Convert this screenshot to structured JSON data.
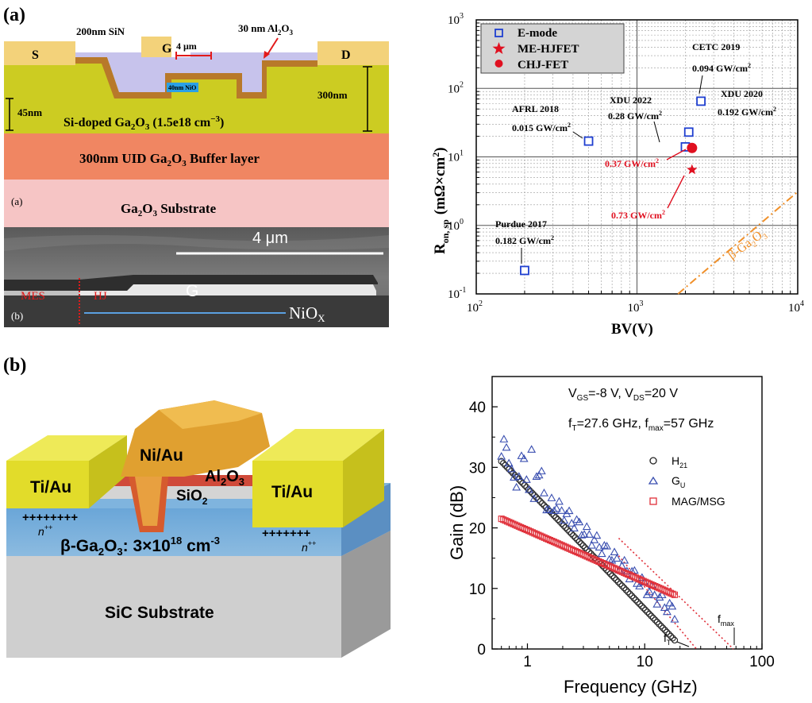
{
  "panel_a": {
    "label": "(a)",
    "cross_section": {
      "sin_label": "200nm SiN",
      "al2o3_label": "30 nm Al",
      "al2o3_sub": "2",
      "al2o3_o": "O",
      "al2o3_sub2": "3",
      "source": "S",
      "gate": "G",
      "gate_width": "4 μm",
      "drain": "D",
      "nio_label": "40nm NiO",
      "thick_300": "300nm",
      "thick_45": "45nm",
      "channel_label": "Si-doped Ga",
      "channel_sub": "2",
      "channel_o": "O",
      "channel_sub3": "3",
      "channel_doping": " (1.5e18 cm",
      "channel_exp": "−3",
      "channel_close": ")",
      "buffer_label": "300nm UID Ga",
      "buffer_sub": "2",
      "buffer_o": "O",
      "buffer_sub3": "3",
      "buffer_tail": " Buffer layer",
      "sub_a": "(a)",
      "substrate_label": "Ga",
      "substrate_sub": "2",
      "substrate_o": "O",
      "substrate_sub3": "3",
      "substrate_tail": " Substrate"
    },
    "sem": {
      "scale": "4 μm",
      "gate": "G",
      "mes": "MES",
      "hj": "HJ",
      "sub_b": "(b)",
      "nio": "NiO",
      "nio_sub": "X"
    },
    "chart": {
      "legend": [
        "E-mode",
        "ME-HJFET",
        "CHJ-FET"
      ],
      "ylabel_main": "R",
      "ylabel_sub": "on, sp",
      "ylabel_units": "(mΩ×cm",
      "ylabel_exp": "2",
      "ylabel_close": ")",
      "xlabel": "BV(V)",
      "x_ticks": [
        "10",
        "10",
        "10"
      ],
      "x_tick_exps": [
        "2",
        "3",
        "4"
      ],
      "y_ticks": [
        "10",
        "10",
        "10",
        "10",
        "10"
      ],
      "y_tick_exps": [
        "-1",
        "0",
        "1",
        "2",
        "3"
      ],
      "limit_label": "β-Ga",
      "limit_sub": "2",
      "limit_o": "O",
      "limit_sub3": "3",
      "annotations": [
        {
          "name": "CETC 2019",
          "fom": "0.094 GW/cm",
          "exp": "2"
        },
        {
          "name": "XDU 2020",
          "fom": "0.192 GW/cm",
          "exp": "2"
        },
        {
          "name": "XDU 2022",
          "fom": "0.28 GW/cm",
          "exp": "2"
        },
        {
          "name": "AFRL 2018",
          "fom": "0.015 GW/cm",
          "exp": "2"
        },
        {
          "name": "Purdue 2017",
          "fom": "0.182 GW/cm",
          "exp": "2"
        },
        {
          "name": "",
          "fom": "0.37 GW/cm",
          "exp": "2"
        },
        {
          "name": "",
          "fom": "0.73 GW/cm",
          "exp": "2"
        }
      ]
    }
  },
  "panel_b": {
    "label": "(b)",
    "device": {
      "ti_au_left": "Ti/Au",
      "ti_au_right": "Ti/Au",
      "ni_au": "Ni/Au",
      "al2o3": "Al",
      "al2o3_sub": "2",
      "al2o3_o": "O",
      "al2o3_sub3": "3",
      "sio2": "SiO",
      "sio2_sub": "2",
      "plus_left": "++++++++",
      "plus_right": "+++++++",
      "npp_left": "n",
      "npp_right": "n",
      "npp_sup": "++",
      "channel": "β-Ga",
      "channel_sub": "2",
      "channel_o": "O",
      "channel_sub3": "3",
      "channel_doping": ": 3×10",
      "channel_exp": "18",
      "channel_units": " cm",
      "channel_units_exp": "-3",
      "substrate": "SiC Substrate"
    },
    "chart": {
      "cond1": "V",
      "cond1_sub": "GS",
      "cond1_val": "=-8 V, V",
      "cond1_sub2": "DS",
      "cond1_val2": "=20 V",
      "cond2": "f",
      "cond2_sub": "T",
      "cond2_val": "=27.6 GHz, f",
      "cond2_sub2": "max",
      "cond2_val2": "=57 GHz",
      "legend": [
        {
          "label": "H",
          "sub": "21",
          "color": "#222222"
        },
        {
          "label": "G",
          "sub": "U",
          "color": "#3a4fb0"
        },
        {
          "label": "MAG/MSG",
          "sub": "",
          "color": "#e0303a"
        }
      ],
      "ylabel": "Gain (dB)",
      "xlabel": "Frequency (GHz)",
      "y_ticks": [
        "0",
        "10",
        "20",
        "30",
        "40"
      ],
      "x_ticks": [
        "1",
        "10",
        "100"
      ],
      "ft_label": "f",
      "ft_sub": "T",
      "fmax_label": "f",
      "fmax_sub": "max"
    }
  },
  "chart_data": [
    {
      "type": "scatter",
      "xlabel": "BV(V)",
      "ylabel": "Ron, sp (mΩ×cm2)",
      "x_scale": "log",
      "y_scale": "log",
      "xlim": [
        100,
        10000
      ],
      "ylim": [
        0.1,
        1000
      ],
      "legend_position": "top-left",
      "series": [
        {
          "name": "E-mode",
          "marker": "open-square",
          "color": "#1f3fd0",
          "points": [
            [
              200,
              0.22
            ],
            [
              500,
              17
            ],
            [
              2000,
              14
            ],
            [
              2100,
              23
            ],
            [
              2500,
              65
            ]
          ]
        },
        {
          "name": "ME-HJFET",
          "marker": "star",
          "color": "#e01020",
          "points": [
            [
              2200,
              6.5
            ]
          ]
        },
        {
          "name": "CHJ-FET",
          "marker": "circle",
          "color": "#e01020",
          "points": [
            [
              2200,
              13.5
            ]
          ]
        }
      ],
      "reference_line": {
        "label": "β-Ga2O3",
        "color": "#f0902a",
        "points": [
          [
            1800,
            0.1
          ],
          [
            10000,
            3.1
          ]
        ]
      }
    },
    {
      "type": "scatter",
      "xlabel": "Frequency (GHz)",
      "ylabel": "Gain (dB)",
      "x_scale": "log",
      "xlim": [
        0.5,
        100
      ],
      "ylim": [
        0,
        45
      ],
      "legend_position": "right",
      "series": [
        {
          "name": "H21",
          "marker": "open-circle",
          "color": "#222222",
          "curve": {
            "from": 0.6,
            "to": 18,
            "a": 31.0,
            "b": 20.0
          }
        },
        {
          "name": "GU",
          "marker": "open-triangle",
          "color": "#3a4fb0",
          "curve": {
            "from": 0.6,
            "to": 18,
            "a": 31.8,
            "b": 17.5
          }
        },
        {
          "name": "MAG/MSG",
          "marker": "open-square",
          "color": "#e0303a",
          "curve": {
            "from": 0.6,
            "to": 18,
            "a": 21.5,
            "b": 8.5
          }
        }
      ],
      "extrapolations": [
        {
          "name": "fT",
          "x": 27.6,
          "from": [
            6,
            15.4
          ],
          "to": [
            27.6,
            0
          ]
        },
        {
          "name": "fmax",
          "x": 57,
          "from": [
            6,
            18.3
          ],
          "to": [
            57,
            0
          ]
        }
      ]
    }
  ]
}
